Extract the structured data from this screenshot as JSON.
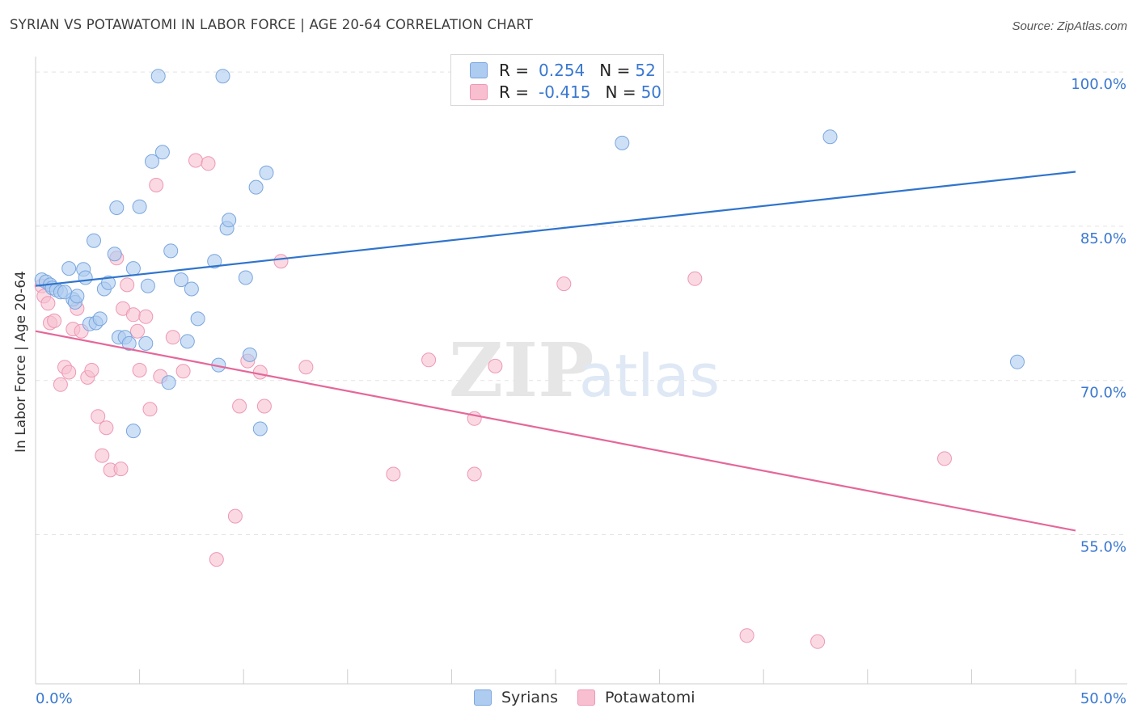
{
  "header": {
    "title": "SYRIAN VS POTAWATOMI IN LABOR FORCE | AGE 20-64 CORRELATION CHART",
    "source": "Source: ZipAtlas.com"
  },
  "legend_top": {
    "syrians": {
      "r_label": "R =",
      "r_value": "0.254",
      "n_label": "N =",
      "n_value": "52"
    },
    "potawatomi": {
      "r_label": "R =",
      "r_value": "-0.415",
      "n_label": "N =",
      "n_value": "50"
    }
  },
  "legend_bottom": {
    "syrians": "Syrians",
    "potawatomi": "Potawatomi"
  },
  "watermark": {
    "zip": "ZIP",
    "atlas": "atlas"
  },
  "colors": {
    "syrians_fill": "#aecbf0",
    "syrians_stroke": "#7aa6de",
    "syrians_line": "#2f74cc",
    "potawatomi_fill": "#f7bfd0",
    "potawatomi_stroke": "#ee98b4",
    "potawatomi_line": "#e5679a",
    "tick_text": "#3a78d0",
    "grid": "#e3e3e3"
  },
  "chart_data": {
    "type": "scatter",
    "title": "SYRIAN VS POTAWATOMI IN LABOR FORCE | AGE 20-64 CORRELATION CHART",
    "xlabel": "",
    "ylabel": "In Labor Force | Age 20-64",
    "xlim": [
      0,
      50
    ],
    "ylim": [
      40.5,
      101.5
    ],
    "x_tick_labels": [
      {
        "value": 0,
        "label": "0.0%"
      },
      {
        "value": 50,
        "label": "50.0%"
      }
    ],
    "y_tick_labels": [
      {
        "value": 100,
        "label": "100.0%"
      },
      {
        "value": 85,
        "label": "85.0%"
      },
      {
        "value": 70,
        "label": "70.0%"
      },
      {
        "value": 55,
        "label": "55.0%"
      }
    ],
    "grid": true,
    "legend": "top-center",
    "series": [
      {
        "name": "Syrians",
        "r": 0.254,
        "n": 52,
        "trend": {
          "x": [
            0,
            50
          ],
          "y": [
            79.2,
            90.3
          ]
        },
        "points": [
          [
            0.3,
            79.8
          ],
          [
            0.5,
            79.6
          ],
          [
            0.7,
            79.3
          ],
          [
            0.8,
            79.0
          ],
          [
            1.0,
            78.8
          ],
          [
            1.2,
            78.6
          ],
          [
            1.6,
            80.9
          ],
          [
            1.8,
            77.9
          ],
          [
            1.9,
            77.6
          ],
          [
            2.0,
            78.2
          ],
          [
            2.3,
            80.8
          ],
          [
            2.4,
            80.0
          ],
          [
            2.6,
            75.5
          ],
          [
            2.8,
            83.6
          ],
          [
            2.9,
            75.6
          ],
          [
            3.1,
            76.0
          ],
          [
            3.3,
            78.9
          ],
          [
            3.5,
            79.5
          ],
          [
            3.8,
            82.3
          ],
          [
            3.9,
            86.8
          ],
          [
            4.0,
            74.2
          ],
          [
            4.3,
            74.2
          ],
          [
            4.5,
            73.6
          ],
          [
            4.7,
            80.9
          ],
          [
            5.0,
            86.9
          ],
          [
            5.3,
            73.6
          ],
          [
            5.4,
            79.2
          ],
          [
            5.6,
            91.3
          ],
          [
            5.9,
            99.6
          ],
          [
            6.1,
            92.2
          ],
          [
            6.4,
            69.8
          ],
          [
            6.5,
            82.6
          ],
          [
            7.0,
            79.8
          ],
          [
            7.3,
            73.8
          ],
          [
            7.5,
            78.9
          ],
          [
            7.8,
            76.0
          ],
          [
            8.6,
            81.6
          ],
          [
            8.8,
            71.5
          ],
          [
            9.0,
            99.6
          ],
          [
            9.2,
            84.8
          ],
          [
            9.3,
            85.6
          ],
          [
            10.1,
            80.0
          ],
          [
            10.3,
            72.5
          ],
          [
            10.6,
            88.8
          ],
          [
            10.8,
            65.3
          ],
          [
            11.1,
            90.2
          ],
          [
            4.7,
            65.1
          ],
          [
            28.0,
            99.6
          ],
          [
            28.2,
            93.1
          ],
          [
            38.2,
            93.7
          ],
          [
            47.2,
            71.8
          ],
          [
            1.4,
            78.6
          ]
        ]
      },
      {
        "name": "Potawatomi",
        "r": -0.415,
        "n": 50,
        "trend": {
          "x": [
            0,
            50
          ],
          "y": [
            74.8,
            55.4
          ]
        },
        "points": [
          [
            0.3,
            79.2
          ],
          [
            0.4,
            78.2
          ],
          [
            0.6,
            77.5
          ],
          [
            0.7,
            75.6
          ],
          [
            0.9,
            75.8
          ],
          [
            1.2,
            69.6
          ],
          [
            1.4,
            71.3
          ],
          [
            1.6,
            70.8
          ],
          [
            1.8,
            75.0
          ],
          [
            2.0,
            77.0
          ],
          [
            2.2,
            74.8
          ],
          [
            2.5,
            70.3
          ],
          [
            2.7,
            71.0
          ],
          [
            3.0,
            66.5
          ],
          [
            3.2,
            62.7
          ],
          [
            3.4,
            65.4
          ],
          [
            3.6,
            61.3
          ],
          [
            3.9,
            81.9
          ],
          [
            4.1,
            61.4
          ],
          [
            4.2,
            77.0
          ],
          [
            4.4,
            79.3
          ],
          [
            4.7,
            76.4
          ],
          [
            4.9,
            74.8
          ],
          [
            5.0,
            71.0
          ],
          [
            5.3,
            76.2
          ],
          [
            5.5,
            67.2
          ],
          [
            5.8,
            89.0
          ],
          [
            6.0,
            70.4
          ],
          [
            6.6,
            74.2
          ],
          [
            7.1,
            70.9
          ],
          [
            7.7,
            91.4
          ],
          [
            8.3,
            91.1
          ],
          [
            8.7,
            52.6
          ],
          [
            9.6,
            56.8
          ],
          [
            9.8,
            67.5
          ],
          [
            10.2,
            71.9
          ],
          [
            10.8,
            70.8
          ],
          [
            11.0,
            67.5
          ],
          [
            11.8,
            81.6
          ],
          [
            13.0,
            71.3
          ],
          [
            17.2,
            60.9
          ],
          [
            18.9,
            72.0
          ],
          [
            21.1,
            66.3
          ],
          [
            21.1,
            60.9
          ],
          [
            22.1,
            71.4
          ],
          [
            25.4,
            79.4
          ],
          [
            31.7,
            79.9
          ],
          [
            43.7,
            62.4
          ],
          [
            34.2,
            45.2
          ],
          [
            37.6,
            44.6
          ]
        ]
      }
    ]
  }
}
